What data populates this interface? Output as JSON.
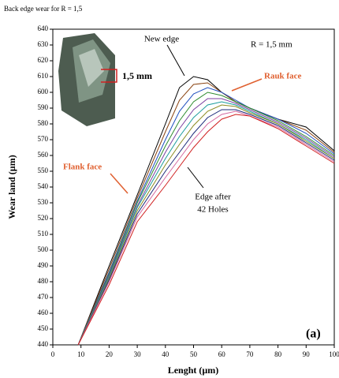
{
  "chart_data": {
    "type": "line",
    "title": "Back edge wear for R = 1,5",
    "x_label": "Lenght (µm)",
    "y_label": "Wear land (µm)",
    "annotations": [
      "New edge",
      "R = 1,5 mm",
      "Rauk face",
      "Flank face",
      "Edge after",
      "42 Holes",
      "(a)",
      "1,5 mm"
    ],
    "x": [
      9,
      20,
      30,
      40,
      45,
      50,
      55,
      60,
      65,
      70,
      80,
      90,
      100
    ],
    "series": [
      {
        "color": "#000000",
        "values": [
          440,
          490,
          535,
          580,
          603,
          610,
          608,
          600,
          594,
          590,
          583,
          578,
          563
        ]
      },
      {
        "color": "#8b4513",
        "values": [
          440,
          488,
          533,
          575,
          595,
          605,
          606,
          600,
          594,
          590,
          583,
          576,
          562
        ]
      },
      {
        "color": "#1f4fbf",
        "values": [
          440,
          486,
          531,
          570,
          588,
          599,
          603,
          600,
          595,
          590,
          583,
          574,
          561
        ]
      },
      {
        "color": "#2e8b2e",
        "values": [
          440,
          485,
          530,
          566,
          582,
          594,
          600,
          598,
          594,
          590,
          582,
          572,
          560
        ]
      },
      {
        "color": "#7b3fa0",
        "values": [
          440,
          484,
          528,
          562,
          577,
          589,
          596,
          596,
          593,
          589,
          581,
          571,
          559
        ]
      },
      {
        "color": "#1a9c9c",
        "values": [
          440,
          483,
          527,
          558,
          572,
          584,
          592,
          594,
          592,
          588,
          580,
          570,
          558
        ]
      },
      {
        "color": "#8a8a20",
        "values": [
          440,
          482,
          525,
          554,
          567,
          579,
          588,
          592,
          591,
          587,
          580,
          569,
          558
        ]
      },
      {
        "color": "#1b2a7a",
        "values": [
          440,
          481,
          523,
          550,
          562,
          574,
          584,
          589,
          589,
          586,
          579,
          568,
          557
        ]
      },
      {
        "color": "#d46aa0",
        "values": [
          440,
          480,
          521,
          546,
          558,
          570,
          580,
          586,
          588,
          585,
          578,
          567,
          556
        ]
      },
      {
        "color": "#d02020",
        "values": [
          440,
          478,
          518,
          541,
          553,
          565,
          575,
          583,
          586,
          585,
          577,
          566,
          555
        ]
      }
    ],
    "xlim": [
      0,
      100
    ],
    "xticks": [
      0,
      10,
      20,
      30,
      40,
      50,
      60,
      70,
      80,
      90,
      100
    ],
    "ylim": [
      440,
      640
    ],
    "yticks": [
      440,
      450,
      460,
      470,
      480,
      490,
      500,
      510,
      520,
      530,
      540,
      550,
      560,
      570,
      580,
      590,
      600,
      610,
      620,
      630,
      640
    ]
  }
}
